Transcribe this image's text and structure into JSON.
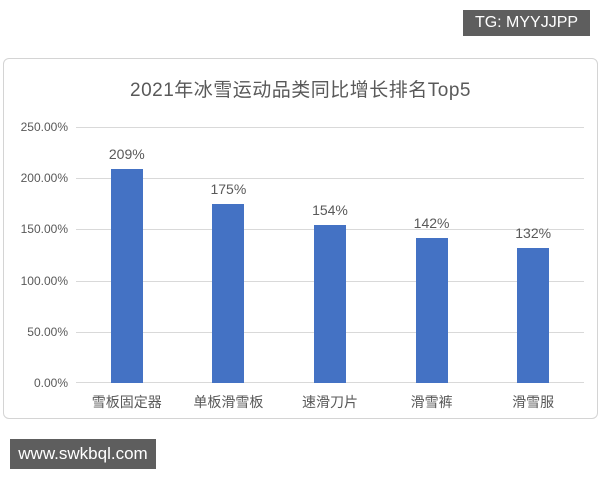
{
  "watermarks": {
    "top_right": "TG: MYYJJPP",
    "bottom_left": "www.swkbql.com",
    "badge_bg": "#5e5e5e",
    "badge_text_color": "#ffffff"
  },
  "chart_data": {
    "type": "bar",
    "title": "2021年冰雪运动品类同比增长排名Top5",
    "categories": [
      "雪板固定器",
      "单板滑雪板",
      "速滑刀片",
      "滑雪裤",
      "滑雪服"
    ],
    "values": [
      209,
      175,
      154,
      142,
      132
    ],
    "data_labels": [
      "209%",
      "175%",
      "154%",
      "142%",
      "132%"
    ],
    "xlabel": "",
    "ylabel": "",
    "ylim": [
      0,
      250
    ],
    "y_ticks": [
      "250.00%",
      "200.00%",
      "150.00%",
      "100.00%",
      "50.00%",
      "0.00%"
    ],
    "grid": true,
    "legend": "none",
    "bar_color": "#4472c4",
    "gridline_color": "#d9d9d9",
    "text_color": "#595959"
  }
}
